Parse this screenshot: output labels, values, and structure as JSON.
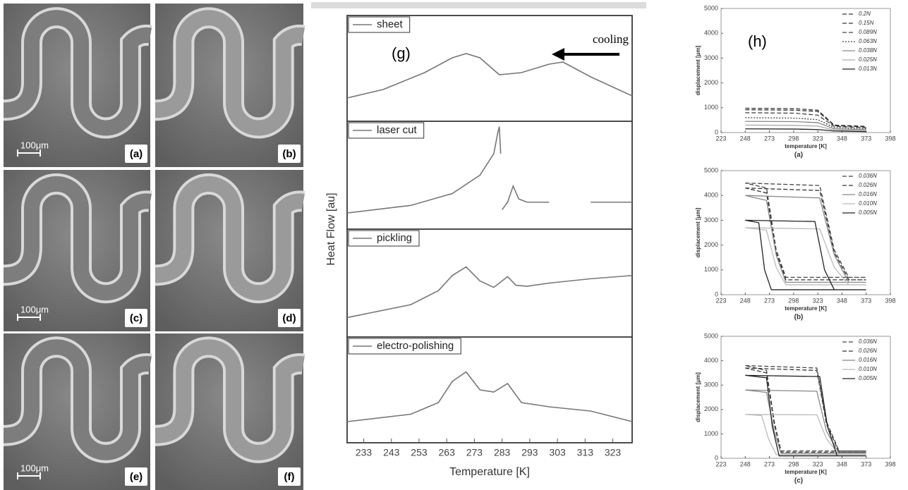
{
  "micrographs": [
    {
      "label": "(a)",
      "scale": "100μm"
    },
    {
      "label": "(b)"
    },
    {
      "label": "(c)",
      "scale": "100μm"
    },
    {
      "label": "(d)"
    },
    {
      "label": "(e)",
      "scale": "100μm"
    },
    {
      "label": "(f)"
    }
  ],
  "chart_data": [
    {
      "type": "line",
      "annotations": [
        "(g)",
        "cooling"
      ],
      "xlim": [
        227,
        330
      ],
      "ylim": [
        0,
        10
      ],
      "series": [
        {
          "name": "sheet",
          "color": "#777777",
          "dash": "solid",
          "x": [
            227,
            240,
            255,
            265,
            270,
            275,
            282,
            290,
            300,
            305,
            315,
            330
          ],
          "values": [
            2.2,
            3.0,
            4.6,
            6.0,
            6.4,
            6.0,
            4.4,
            4.6,
            5.4,
            5.6,
            4.2,
            2.4
          ]
        }
      ]
    },
    {
      "type": "line",
      "xlim": [
        227,
        330
      ],
      "ylim": [
        0,
        10
      ],
      "series": [
        {
          "name": "laser cut",
          "color": "#777777",
          "dash": "solid",
          "x": [
            227,
            250,
            265,
            275,
            280,
            281.5,
            282,
            282.5,
            283,
            283,
            285,
            287,
            289,
            292,
            300,
            310,
            315,
            320,
            330
          ],
          "values": [
            1.5,
            2.2,
            3.3,
            5.0,
            7.0,
            9.0,
            9.5,
            7.0,
            null,
            1.8,
            2.5,
            4.0,
            2.8,
            2.5,
            2.5,
            null,
            2.5,
            2.5,
            2.5
          ]
        }
      ]
    },
    {
      "type": "line",
      "xlim": [
        227,
        330
      ],
      "ylim": [
        0,
        10
      ],
      "series": [
        {
          "name": "pickling",
          "color": "#777777",
          "dash": "solid",
          "x": [
            227,
            250,
            260,
            265,
            270,
            275,
            280,
            285,
            288,
            292,
            300,
            315,
            330
          ],
          "values": [
            1.8,
            3.0,
            4.3,
            5.7,
            6.5,
            5.2,
            4.6,
            5.6,
            4.8,
            4.7,
            5.0,
            5.4,
            5.7
          ]
        }
      ]
    },
    {
      "type": "line",
      "xlabel": "Temperature [K]",
      "ylabel": "Heat Flow [au]",
      "xlim": [
        227,
        330
      ],
      "ylim": [
        0,
        10
      ],
      "xticks": [
        233,
        243,
        253,
        263,
        273,
        283,
        293,
        303,
        313,
        323
      ],
      "series": [
        {
          "name": "electro-polishing",
          "color": "#777777",
          "dash": "solid",
          "x": [
            227,
            250,
            260,
            265,
            270,
            275,
            280,
            285,
            290,
            300,
            315,
            330
          ],
          "values": [
            2.0,
            2.7,
            3.8,
            5.8,
            6.7,
            5.0,
            4.8,
            5.6,
            3.8,
            3.4,
            3.0,
            2.0
          ]
        }
      ]
    },
    {
      "type": "line",
      "annotations": [
        "(h)"
      ],
      "caption": "(a)",
      "xlabel": "temperature [K]",
      "ylabel": "displacement [μm]",
      "xlim": [
        223,
        398
      ],
      "ylim": [
        0,
        5000
      ],
      "xticks": [
        223,
        248,
        273,
        298,
        323,
        348,
        373,
        398
      ],
      "yticks": [
        0,
        1000,
        2000,
        3000,
        4000,
        5000
      ],
      "series": [
        {
          "name": "0.2N",
          "color": "#333333",
          "dash": "dashed",
          "x": [
            248,
            300,
            323,
            340,
            373
          ],
          "values": [
            980,
            960,
            900,
            300,
            250
          ]
        },
        {
          "name": "0.15N",
          "color": "#333333",
          "dash": "dashed",
          "x": [
            248,
            300,
            323,
            340,
            373
          ],
          "values": [
            920,
            900,
            850,
            280,
            230
          ]
        },
        {
          "name": "0.089N",
          "color": "#444444",
          "dash": "dashed",
          "x": [
            248,
            300,
            323,
            340,
            373
          ],
          "values": [
            800,
            780,
            700,
            250,
            200
          ]
        },
        {
          "name": "0.063N",
          "color": "#444444",
          "dash": "dotted",
          "x": [
            248,
            300,
            323,
            340,
            373
          ],
          "values": [
            600,
            580,
            520,
            200,
            160
          ]
        },
        {
          "name": "0.038N",
          "color": "#888888",
          "dash": "solid",
          "x": [
            248,
            300,
            323,
            340,
            373
          ],
          "values": [
            450,
            440,
            400,
            150,
            120
          ]
        },
        {
          "name": "0.025N",
          "color": "#aaaaaa",
          "dash": "solid",
          "x": [
            248,
            300,
            323,
            340,
            373
          ],
          "values": [
            300,
            290,
            260,
            100,
            80
          ]
        },
        {
          "name": "0.013N",
          "color": "#222222",
          "dash": "solid",
          "x": [
            248,
            300,
            323,
            340,
            373
          ],
          "values": [
            150,
            140,
            120,
            60,
            40
          ]
        }
      ]
    },
    {
      "type": "line",
      "caption": "(b)",
      "xlabel": "temperature [K]",
      "ylabel": "displacement [μm]",
      "xlim": [
        223,
        398
      ],
      "ylim": [
        0,
        5000
      ],
      "xticks": [
        223,
        248,
        273,
        298,
        323,
        348,
        373,
        398
      ],
      "yticks": [
        0,
        1000,
        2000,
        3000,
        4000,
        5000
      ],
      "series": [
        {
          "name": "0.036N",
          "color": "#444444",
          "dash": "dashed",
          "x": [
            248,
            325,
            340,
            355,
            373,
            290,
            280,
            270,
            248
          ],
          "values": [
            4500,
            4400,
            1800,
            700,
            700,
            700,
            1800,
            4300,
            4500
          ]
        },
        {
          "name": "0.026N",
          "color": "#333333",
          "dash": "dashed",
          "x": [
            248,
            325,
            340,
            355,
            373,
            290,
            280,
            270,
            248
          ],
          "values": [
            4300,
            4200,
            1700,
            600,
            600,
            600,
            1700,
            4100,
            4300
          ]
        },
        {
          "name": "0.016N",
          "color": "#888888",
          "dash": "solid",
          "x": [
            248,
            325,
            340,
            355,
            373,
            290,
            280,
            270,
            248
          ],
          "values": [
            4000,
            3900,
            1600,
            500,
            500,
            500,
            1600,
            3800,
            4000
          ]
        },
        {
          "name": "0.010N",
          "color": "#bbbbbb",
          "dash": "solid",
          "x": [
            248,
            325,
            340,
            355,
            373,
            290,
            280,
            270,
            248
          ],
          "values": [
            2700,
            2650,
            1100,
            400,
            400,
            400,
            1100,
            2600,
            2700
          ]
        },
        {
          "name": "0.005N",
          "color": "#222222",
          "dash": "solid",
          "x": [
            248,
            320,
            330,
            340,
            373,
            275,
            268,
            262,
            248
          ],
          "values": [
            3000,
            2950,
            1000,
            200,
            200,
            200,
            1000,
            2900,
            3000
          ]
        }
      ]
    },
    {
      "type": "line",
      "caption": "(c)",
      "xlabel": "temperature [K]",
      "ylabel": "displacement [μm]",
      "xlim": [
        223,
        398
      ],
      "ylim": [
        0,
        5000
      ],
      "xticks": [
        223,
        248,
        273,
        298,
        323,
        348,
        373,
        398
      ],
      "yticks": [
        0,
        1000,
        2000,
        3000,
        4000,
        5000
      ],
      "series": [
        {
          "name": "0.036N",
          "color": "#444444",
          "dash": "dashed",
          "x": [
            248,
            322,
            332,
            345,
            373,
            285,
            278,
            270,
            248
          ],
          "values": [
            3800,
            3700,
            1500,
            300,
            300,
            300,
            1500,
            3600,
            3800
          ]
        },
        {
          "name": "0.026N",
          "color": "#333333",
          "dash": "dashed",
          "x": [
            248,
            322,
            332,
            345,
            373,
            285,
            278,
            270,
            248
          ],
          "values": [
            3700,
            3600,
            1400,
            250,
            250,
            250,
            1400,
            3500,
            3700
          ]
        },
        {
          "name": "0.016N",
          "color": "#888888",
          "dash": "solid",
          "x": [
            248,
            322,
            332,
            345,
            373,
            285,
            278,
            270,
            248
          ],
          "values": [
            2800,
            2750,
            1100,
            200,
            200,
            200,
            1100,
            2700,
            2800
          ]
        },
        {
          "name": "0.010N",
          "color": "#bbbbbb",
          "dash": "solid",
          "x": [
            248,
            322,
            332,
            345,
            373,
            280,
            272,
            265,
            248
          ],
          "values": [
            1800,
            1780,
            800,
            150,
            150,
            150,
            800,
            1750,
            1800
          ]
        },
        {
          "name": "0.005N",
          "color": "#222222",
          "dash": "solid",
          "x": [
            248,
            325,
            333,
            343,
            373,
            283,
            276,
            270,
            248
          ],
          "values": [
            3400,
            3350,
            1300,
            100,
            100,
            100,
            1300,
            3300,
            3400
          ]
        }
      ]
    }
  ]
}
